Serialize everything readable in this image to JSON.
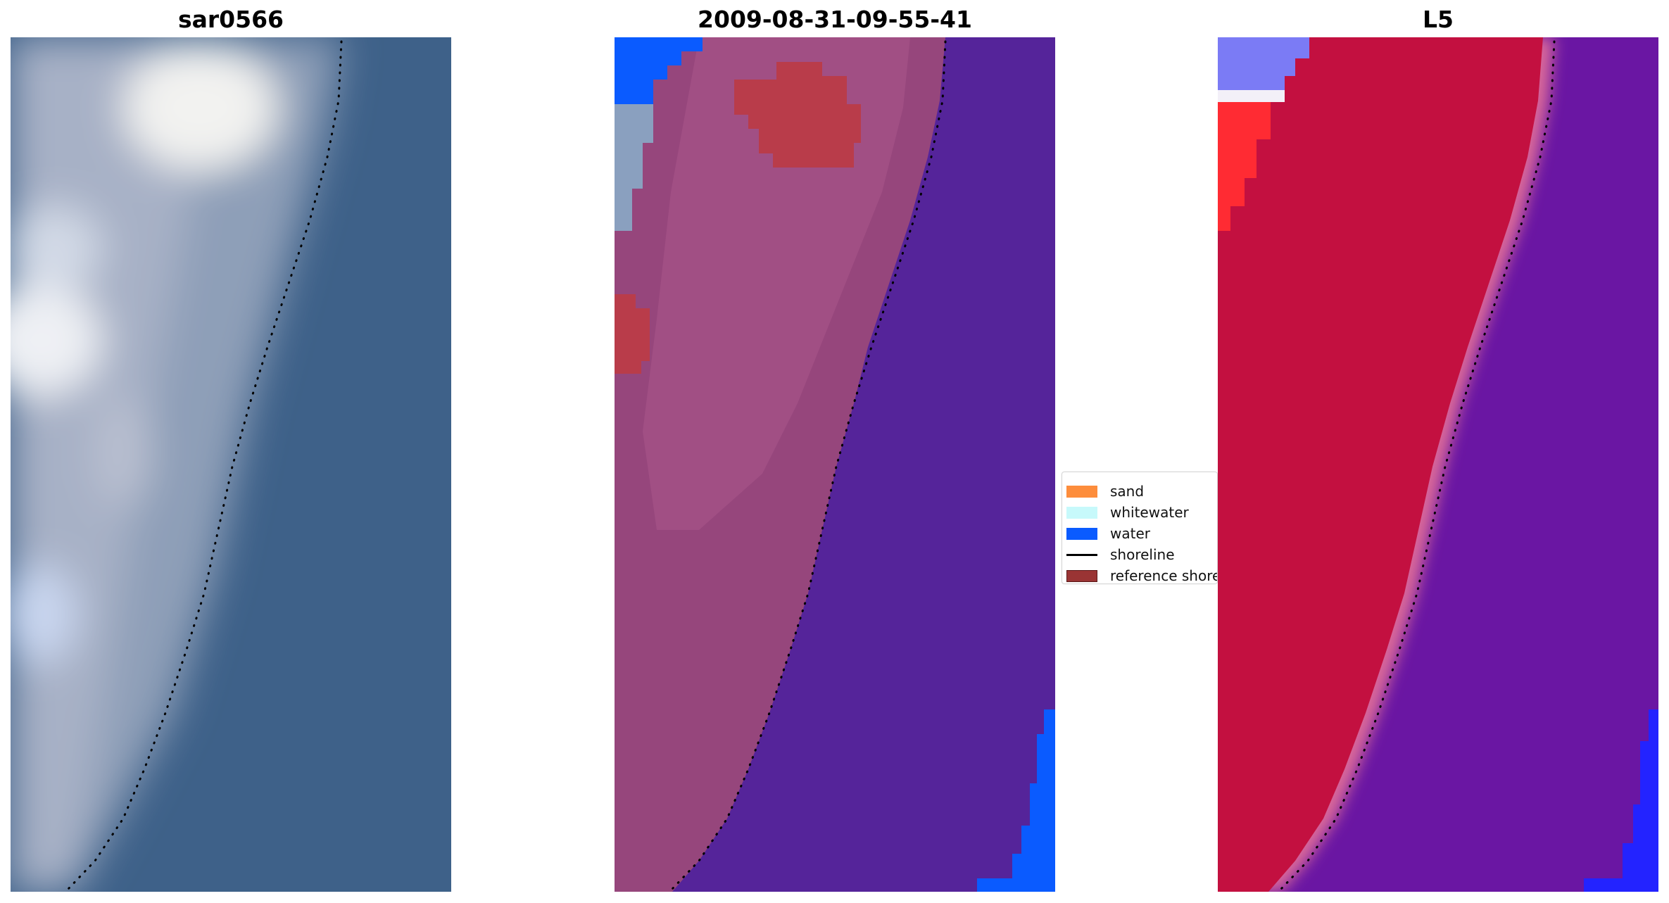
{
  "panels": [
    {
      "title": "sar0566"
    },
    {
      "title": "2009-08-31-09-55-41"
    },
    {
      "title": "L5"
    }
  ],
  "legend": {
    "items": [
      {
        "label": "sand",
        "color": "#fd8d3c",
        "kind": "patch"
      },
      {
        "label": "whitewater",
        "color": "#c7f9fb",
        "kind": "patch"
      },
      {
        "label": "water",
        "color": "#0a5bff",
        "kind": "patch"
      },
      {
        "label": "shoreline",
        "color": "#000000",
        "kind": "line"
      },
      {
        "label": "reference shoreline",
        "color": "#9a3434",
        "kind": "patch"
      }
    ]
  },
  "colors": {
    "rgb_water": "#3b5f86",
    "classified_land": "#96477a",
    "classified_water": "#55249a",
    "classified_red": "#b93c4a",
    "mndwi_land": "#c31040",
    "mndwi_water": "#6a15a2",
    "shoreline_dots": "#000000"
  }
}
